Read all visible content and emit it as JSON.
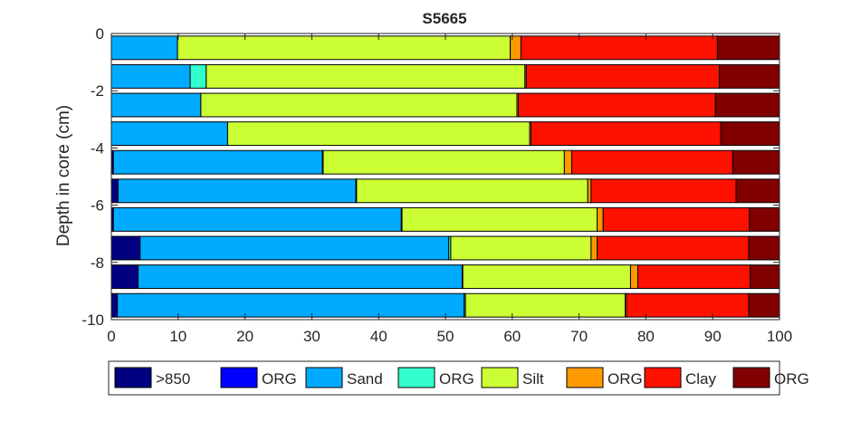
{
  "chart_data": {
    "type": "bar",
    "orientation": "horizontal",
    "stacked": true,
    "title": "S5665",
    "xlabel": "",
    "ylabel": "Depth in core (cm)",
    "xlim": [
      0,
      100
    ],
    "ylim": [
      -10,
      0
    ],
    "xticks": [
      "0",
      "10",
      "20",
      "30",
      "40",
      "50",
      "60",
      "70",
      "80",
      "90",
      "100"
    ],
    "yticks": [
      "0",
      "-2",
      "-4",
      "-6",
      "-8",
      "-10"
    ],
    "legend_position": "bottom",
    "depths": [
      -0.5,
      -1.5,
      -2.5,
      -3.5,
      -4.5,
      -5.5,
      -6.5,
      -7.5,
      -8.5,
      -9.5
    ],
    "series": [
      {
        "name": ">850",
        "color": "#000080",
        "values": [
          0.0,
          0.0,
          0.0,
          0.0,
          0.3,
          1.0,
          0.3,
          4.3,
          4.0,
          0.9
        ]
      },
      {
        "name": "ORG",
        "color": "#0000ff",
        "values": [
          0.0,
          0.0,
          0.0,
          0.0,
          0.0,
          0.0,
          0.0,
          0.0,
          0.0,
          0.0
        ]
      },
      {
        "name": "Sand",
        "color": "#00aaff",
        "values": [
          9.9,
          11.8,
          13.4,
          17.4,
          31.3,
          35.6,
          43.1,
          46.2,
          48.5,
          51.9
        ]
      },
      {
        "name": "ORG",
        "color": "#33ffcc",
        "values": [
          0.0,
          2.4,
          0.0,
          0.0,
          0.1,
          0.1,
          0.1,
          0.3,
          0.1,
          0.2
        ]
      },
      {
        "name": "Silt",
        "color": "#ccff33",
        "values": [
          49.8,
          47.7,
          47.3,
          45.2,
          36.1,
          34.6,
          29.2,
          21.0,
          25.1,
          23.9
        ]
      },
      {
        "name": "ORG",
        "color": "#ff9900",
        "values": [
          1.6,
          0.2,
          0.2,
          0.2,
          1.1,
          0.5,
          0.9,
          0.9,
          1.1,
          0.2
        ]
      },
      {
        "name": "Clay",
        "color": "#ff1100",
        "values": [
          29.4,
          28.9,
          29.5,
          28.4,
          24.1,
          21.7,
          21.9,
          22.7,
          16.8,
          18.3
        ]
      },
      {
        "name": "ORG",
        "color": "#800000",
        "values": [
          9.3,
          9.0,
          9.6,
          8.8,
          7.0,
          6.5,
          4.5,
          4.6,
          4.4,
          4.6
        ]
      }
    ]
  }
}
